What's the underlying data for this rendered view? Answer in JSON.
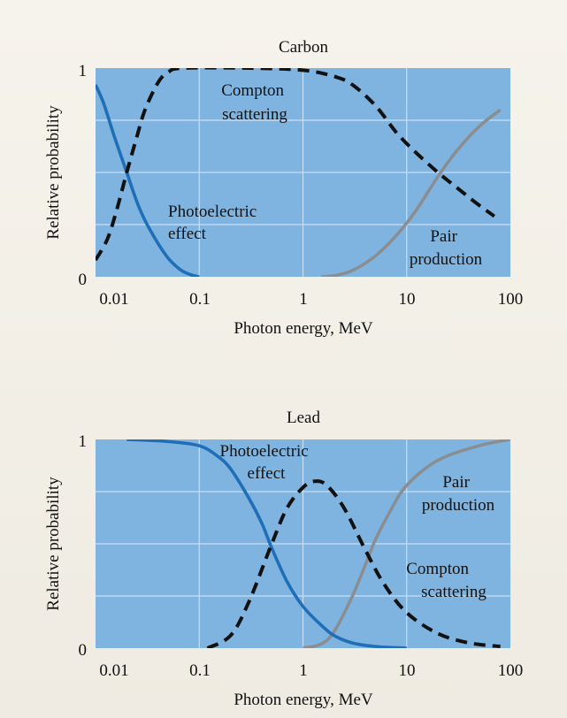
{
  "chart_data": [
    {
      "type": "line",
      "title": "Carbon",
      "xlabel": "Photon energy, MeV",
      "ylabel": "Relative probability",
      "x_scale": "log",
      "xlim": [
        0.01,
        100
      ],
      "ylim": [
        0,
        1
      ],
      "x_ticks": [
        "0.01",
        "0.1",
        "1",
        "10",
        "100"
      ],
      "y_ticks": [
        "0",
        "1"
      ],
      "grid": true,
      "colors": {
        "background": "#7fb4e0",
        "grid": "#c9def2",
        "photoelectric": "#1f6fb8",
        "compton": "#111111",
        "pair": "#8a8e92"
      },
      "series": [
        {
          "key": "photoelectric",
          "style": "solid",
          "label": [
            "Photoelectric",
            "effect"
          ],
          "points": [
            [
              0.01,
              0.92
            ],
            [
              0.012,
              0.83
            ],
            [
              0.015,
              0.68
            ],
            [
              0.02,
              0.5
            ],
            [
              0.025,
              0.36
            ],
            [
              0.03,
              0.27
            ],
            [
              0.04,
              0.16
            ],
            [
              0.05,
              0.09
            ],
            [
              0.06,
              0.05
            ],
            [
              0.07,
              0.025
            ],
            [
              0.085,
              0.008
            ],
            [
              0.1,
              0.0
            ]
          ]
        },
        {
          "key": "compton",
          "style": "dashed",
          "label": [
            "Compton",
            "scattering"
          ],
          "points": [
            [
              0.01,
              0.08
            ],
            [
              0.013,
              0.18
            ],
            [
              0.016,
              0.32
            ],
            [
              0.02,
              0.5
            ],
            [
              0.025,
              0.67
            ],
            [
              0.03,
              0.8
            ],
            [
              0.04,
              0.93
            ],
            [
              0.05,
              0.98
            ],
            [
              0.07,
              1.0
            ],
            [
              0.3,
              1.0
            ],
            [
              1.0,
              0.99
            ],
            [
              2.0,
              0.96
            ],
            [
              3.0,
              0.92
            ],
            [
              5.0,
              0.82
            ],
            [
              8.0,
              0.69
            ],
            [
              12.0,
              0.6
            ],
            [
              20.0,
              0.5
            ],
            [
              30.0,
              0.43
            ],
            [
              45.0,
              0.36
            ],
            [
              70.0,
              0.29
            ]
          ]
        },
        {
          "key": "pair",
          "style": "solid",
          "label": [
            "Pair",
            "production"
          ],
          "points": [
            [
              1.5,
              0.0
            ],
            [
              2.0,
              0.005
            ],
            [
              3.0,
              0.03
            ],
            [
              5.0,
              0.1
            ],
            [
              8.0,
              0.2
            ],
            [
              12.0,
              0.31
            ],
            [
              20.0,
              0.48
            ],
            [
              30.0,
              0.6
            ],
            [
              50.0,
              0.72
            ],
            [
              80.0,
              0.8
            ]
          ]
        }
      ]
    },
    {
      "type": "line",
      "title": "Lead",
      "xlabel": "Photon energy, MeV",
      "ylabel": "Relative probability",
      "x_scale": "log",
      "xlim": [
        0.01,
        100
      ],
      "ylim": [
        0,
        1
      ],
      "x_ticks": [
        "0.01",
        "0.1",
        "1",
        "10",
        "100"
      ],
      "y_ticks": [
        "0",
        "1"
      ],
      "grid": true,
      "colors": {
        "background": "#7fb4e0",
        "grid": "#c9def2",
        "photoelectric": "#1f6fb8",
        "compton": "#111111",
        "pair": "#8a8e92"
      },
      "series": [
        {
          "key": "photoelectric",
          "style": "solid",
          "label": [
            "Photoelectric",
            "effect"
          ],
          "points": [
            [
              0.02,
              1.0
            ],
            [
              0.05,
              0.99
            ],
            [
              0.1,
              0.97
            ],
            [
              0.15,
              0.92
            ],
            [
              0.2,
              0.86
            ],
            [
              0.3,
              0.72
            ],
            [
              0.4,
              0.6
            ],
            [
              0.5,
              0.48
            ],
            [
              0.7,
              0.32
            ],
            [
              1.0,
              0.2
            ],
            [
              1.5,
              0.11
            ],
            [
              2.0,
              0.06
            ],
            [
              3.0,
              0.025
            ],
            [
              5.0,
              0.008
            ],
            [
              10.0,
              0.0
            ]
          ]
        },
        {
          "key": "compton",
          "style": "dashed",
          "label": [
            "Compton",
            "scattering"
          ],
          "points": [
            [
              0.12,
              0.0
            ],
            [
              0.2,
              0.06
            ],
            [
              0.3,
              0.22
            ],
            [
              0.5,
              0.5
            ],
            [
              0.7,
              0.67
            ],
            [
              1.0,
              0.77
            ],
            [
              1.3,
              0.8
            ],
            [
              1.7,
              0.78
            ],
            [
              2.5,
              0.67
            ],
            [
              4.0,
              0.47
            ],
            [
              6.0,
              0.31
            ],
            [
              10.0,
              0.17
            ],
            [
              20.0,
              0.07
            ],
            [
              40.0,
              0.025
            ],
            [
              80.0,
              0.008
            ]
          ]
        },
        {
          "key": "pair",
          "style": "solid",
          "label": [
            "Pair",
            "production"
          ],
          "points": [
            [
              1.0,
              0.0
            ],
            [
              1.5,
              0.02
            ],
            [
              2.0,
              0.08
            ],
            [
              3.0,
              0.25
            ],
            [
              4.0,
              0.4
            ],
            [
              5.0,
              0.52
            ],
            [
              7.0,
              0.66
            ],
            [
              10.0,
              0.78
            ],
            [
              20.0,
              0.9
            ],
            [
              50.0,
              0.97
            ],
            [
              100.0,
              1.0
            ]
          ]
        }
      ]
    }
  ]
}
